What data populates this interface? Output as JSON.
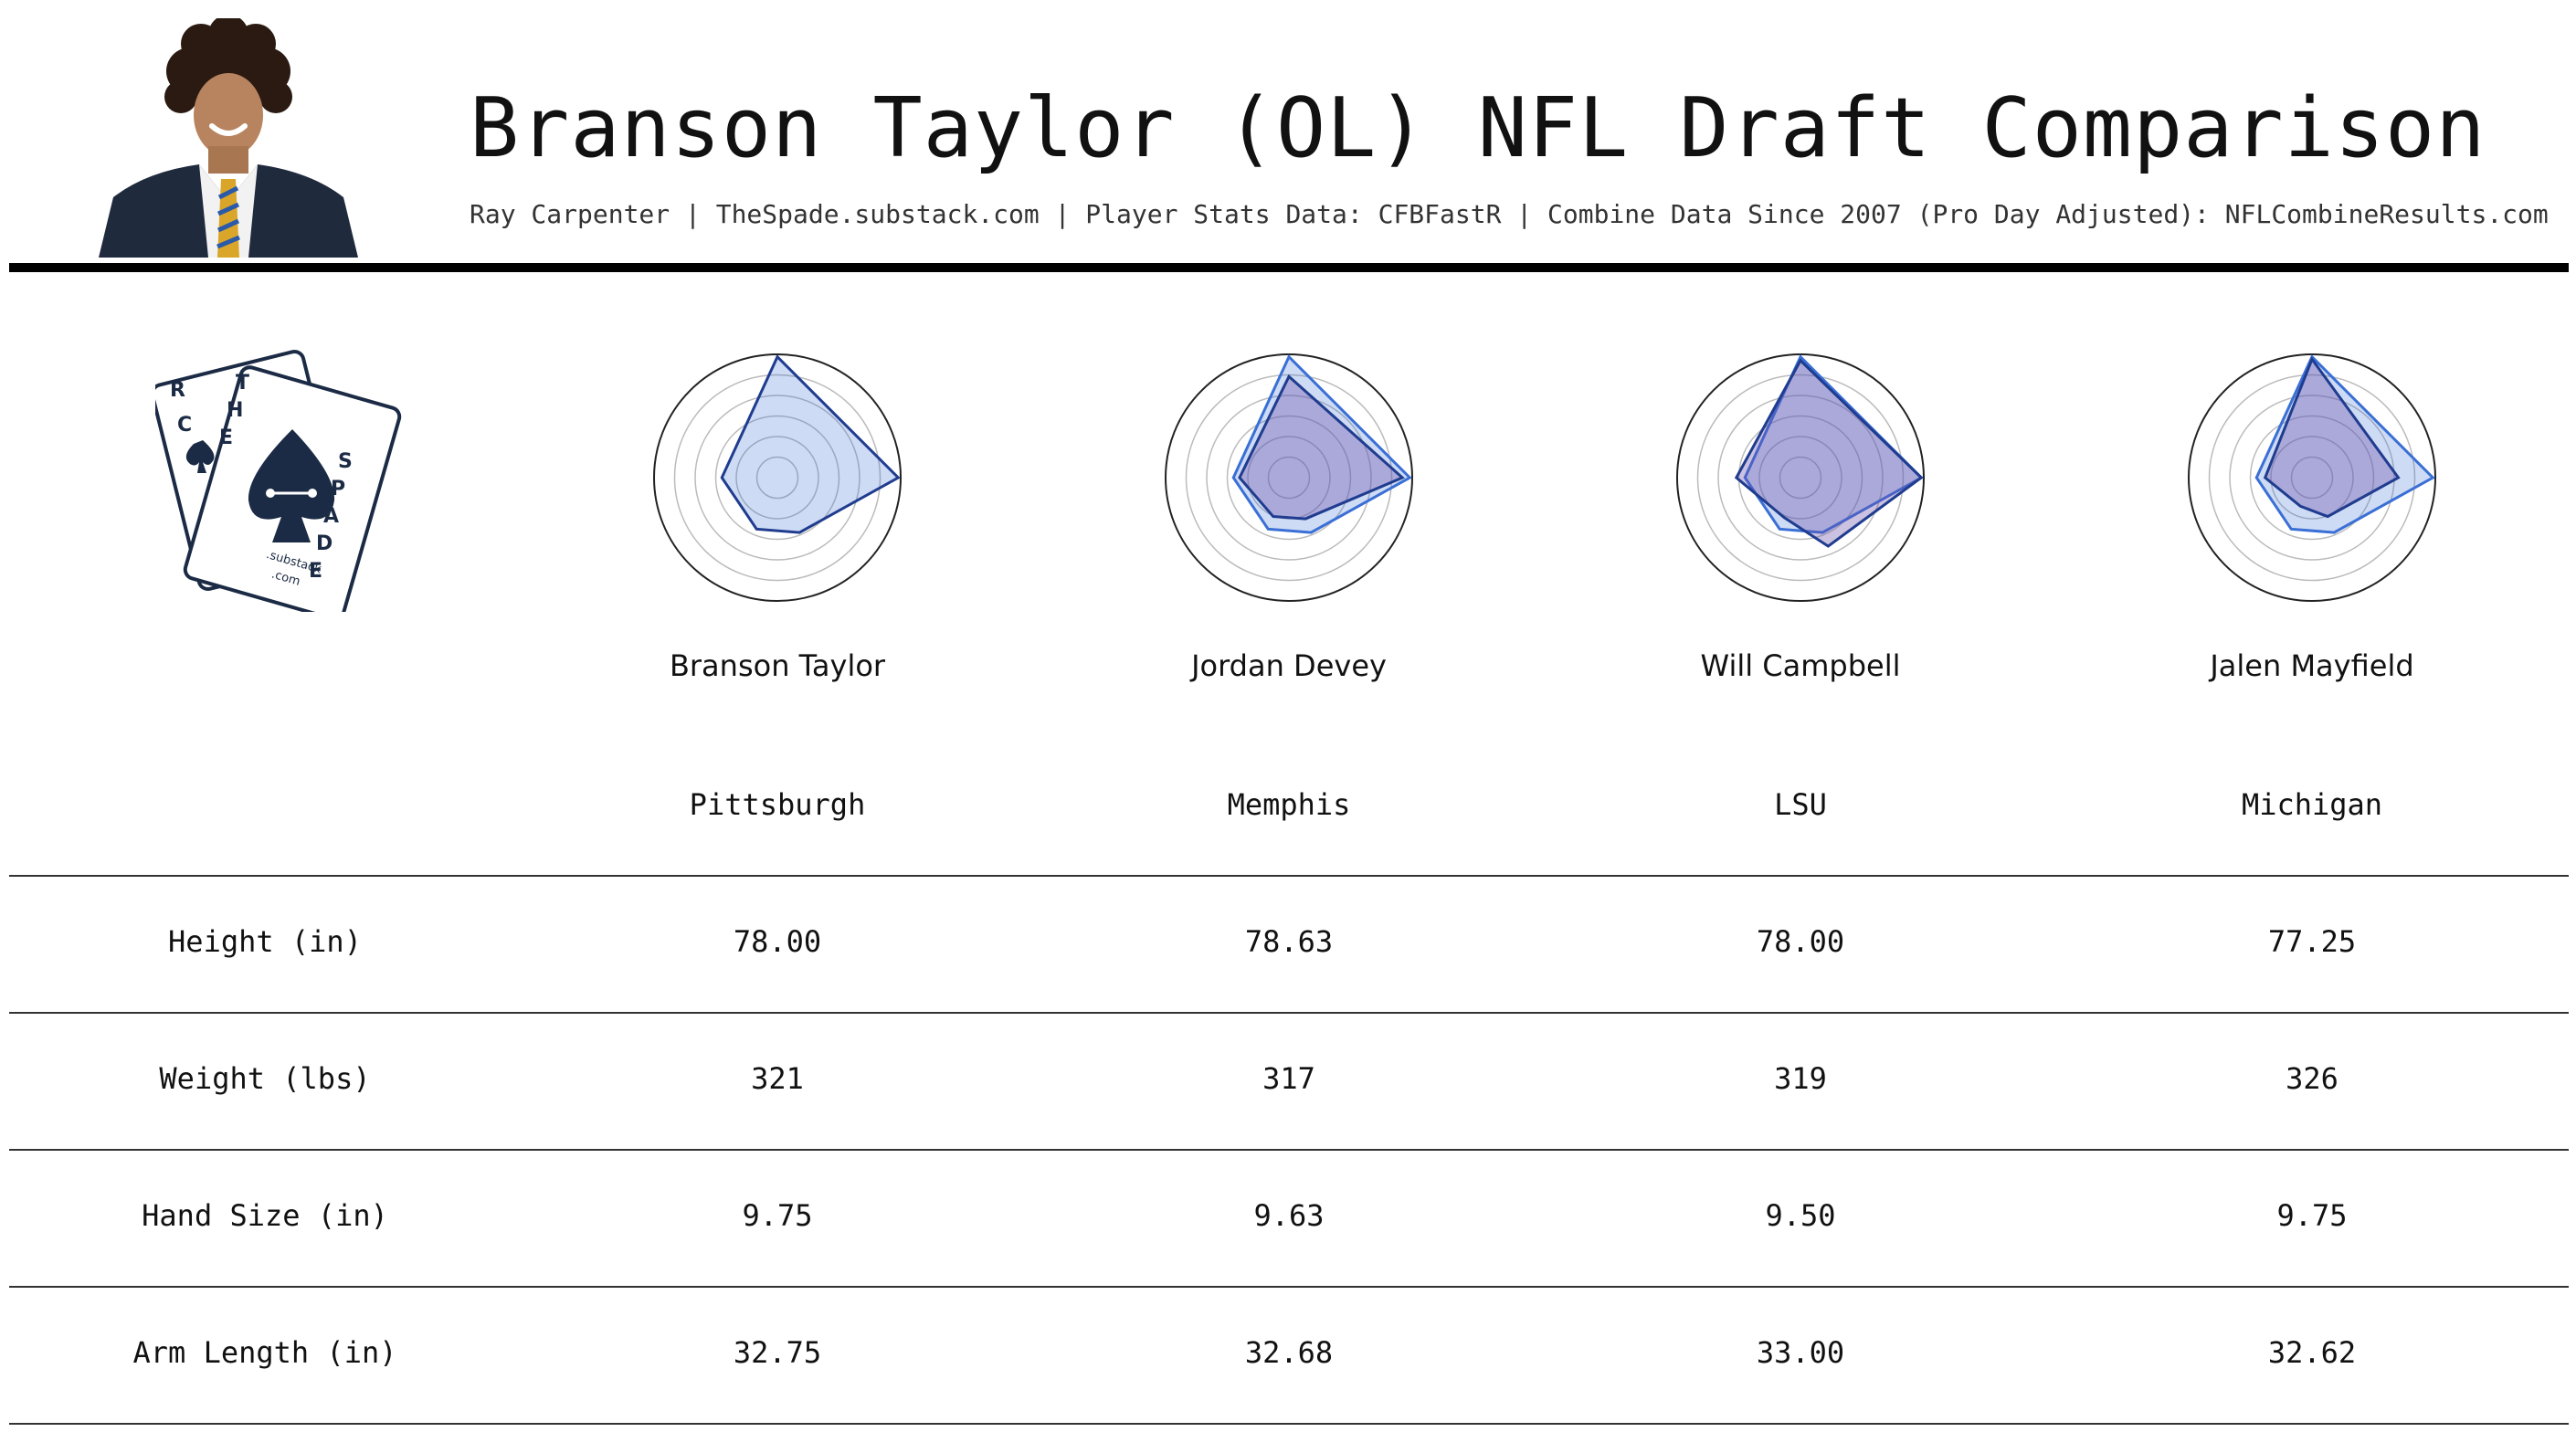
{
  "header": {
    "title": "Branson Taylor (OL) NFL Draft Comparison",
    "subtitle": "Ray Carpenter | TheSpade.substack.com | Player Stats Data: CFBFastR | Combine Data Since 2007 (Pro Day Adjusted): NFLCombineResults.com"
  },
  "logo": {
    "card_back_letters": [
      "R",
      "C"
    ],
    "card_front_left": [
      "T",
      "H",
      "E"
    ],
    "card_front_right": [
      "S",
      "P",
      "A",
      "D",
      "E"
    ],
    "substack_text": ".substack",
    "com_text": ".com",
    "color": "#1c2b45"
  },
  "chart_data": {
    "type": "radar",
    "comparison_color": "#1f3c8f",
    "subject_color": "#3a6fd6",
    "players": [
      {
        "name": "Branson Taylor",
        "school": "Pittsburgh",
        "values": [
          0.98,
          0.98,
          0.48,
          0.45,
          0.45
        ]
      },
      {
        "name": "Jordan Devey",
        "school": "Memphis",
        "values": [
          0.82,
          0.92,
          0.36,
          0.34,
          0.4
        ]
      },
      {
        "name": "Will Campbell",
        "school": "LSU",
        "values": [
          0.95,
          0.98,
          0.6,
          0.35,
          0.52
        ]
      },
      {
        "name": "Jalen Mayfield",
        "school": "Michigan",
        "values": [
          0.96,
          0.7,
          0.34,
          0.25,
          0.38
        ]
      }
    ],
    "subject_values": [
      0.98,
      0.98,
      0.48,
      0.45,
      0.45
    ]
  },
  "table": {
    "rows": [
      {
        "label": "Height (in)",
        "values": [
          "78.00",
          "78.63",
          "78.00",
          "77.25"
        ]
      },
      {
        "label": "Weight (lbs)",
        "values": [
          "321",
          "317",
          "319",
          "326"
        ]
      },
      {
        "label": "Hand Size (in)",
        "values": [
          "9.75",
          "9.63",
          "9.50",
          "9.75"
        ]
      },
      {
        "label": "Arm Length (in)",
        "values": [
          "32.75",
          "32.68",
          "33.00",
          "32.62"
        ]
      }
    ]
  }
}
